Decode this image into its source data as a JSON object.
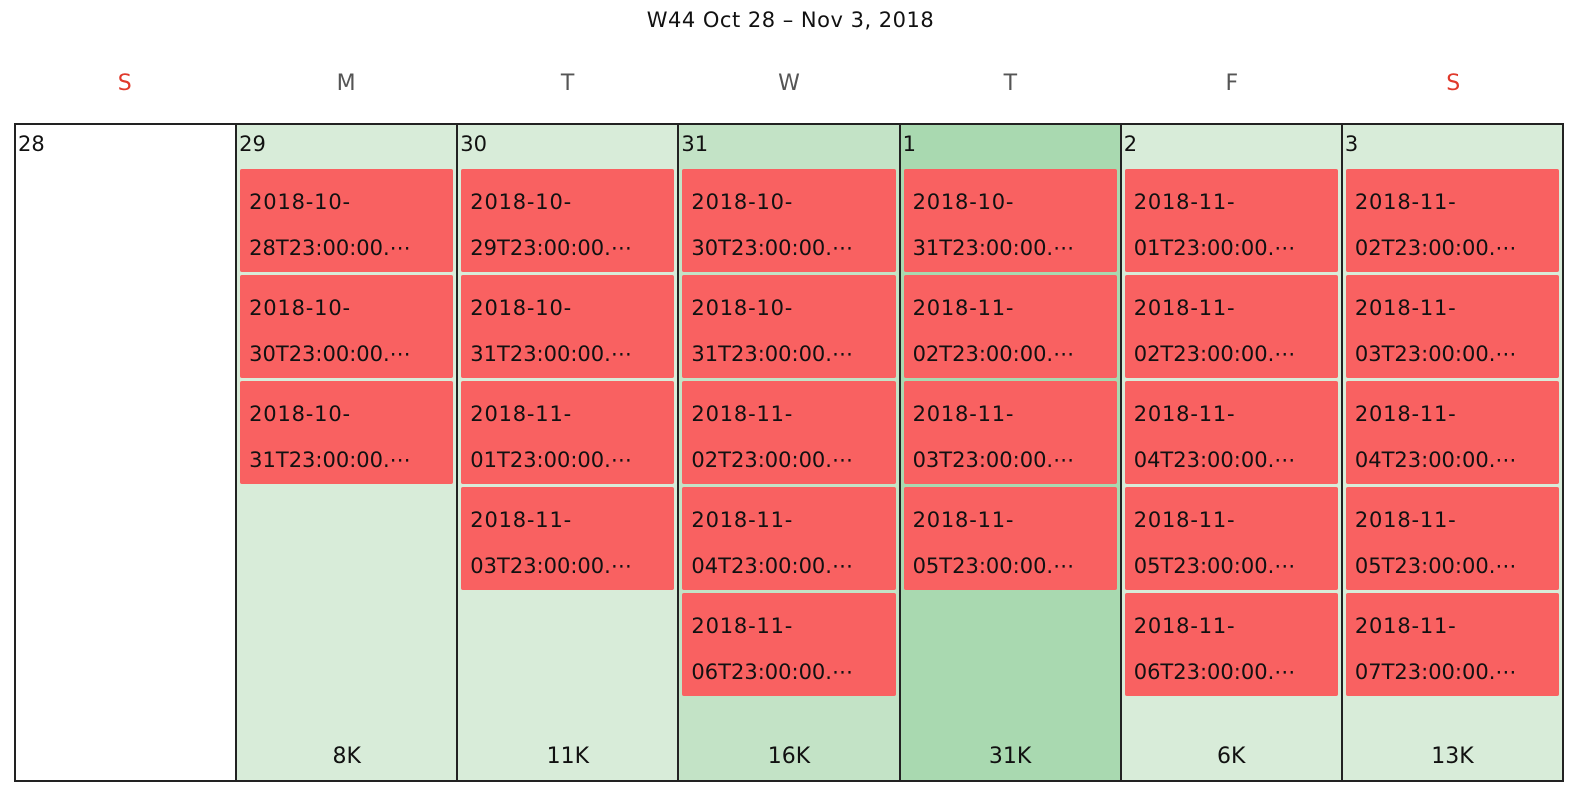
{
  "header": {
    "title": "W44 Oct 28 – Nov 3, 2018"
  },
  "colors": {
    "weekend_label": "#e0392b",
    "event": "#f96161",
    "heat_low": "#d8ecd9",
    "heat_mid": "#c3e3c6",
    "heat_high": "#a9d9b0",
    "empty": "#ffffff"
  },
  "weekdays": [
    {
      "label": "S",
      "weekend": true
    },
    {
      "label": "M",
      "weekend": false
    },
    {
      "label": "T",
      "weekend": false
    },
    {
      "label": "W",
      "weekend": false
    },
    {
      "label": "T",
      "weekend": false
    },
    {
      "label": "F",
      "weekend": false
    },
    {
      "label": "S",
      "weekend": true
    }
  ],
  "days": [
    {
      "number": "28",
      "count": "",
      "events": []
    },
    {
      "number": "29",
      "count": "8K",
      "events": [
        {
          "line1": "2018-10-",
          "line2": "28T23:00:00.⋯"
        },
        {
          "line1": "2018-10-",
          "line2": "30T23:00:00.⋯"
        },
        {
          "line1": "2018-10-",
          "line2": "31T23:00:00.⋯"
        }
      ]
    },
    {
      "number": "30",
      "count": "11K",
      "events": [
        {
          "line1": "2018-10-",
          "line2": "29T23:00:00.⋯"
        },
        {
          "line1": "2018-10-",
          "line2": "31T23:00:00.⋯"
        },
        {
          "line1": "2018-11-",
          "line2": "01T23:00:00.⋯"
        },
        {
          "line1": "2018-11-",
          "line2": "03T23:00:00.⋯"
        }
      ]
    },
    {
      "number": "31",
      "count": "16K",
      "events": [
        {
          "line1": "2018-10-",
          "line2": "30T23:00:00.⋯"
        },
        {
          "line1": "2018-10-",
          "line2": "31T23:00:00.⋯"
        },
        {
          "line1": "2018-11-",
          "line2": "02T23:00:00.⋯"
        },
        {
          "line1": "2018-11-",
          "line2": "04T23:00:00.⋯"
        },
        {
          "line1": "2018-11-",
          "line2": "06T23:00:00.⋯"
        }
      ]
    },
    {
      "number": "1",
      "count": "31K",
      "events": [
        {
          "line1": "2018-10-",
          "line2": "31T23:00:00.⋯"
        },
        {
          "line1": "2018-11-",
          "line2": "02T23:00:00.⋯"
        },
        {
          "line1": "2018-11-",
          "line2": "03T23:00:00.⋯"
        },
        {
          "line1": "2018-11-",
          "line2": "05T23:00:00.⋯"
        }
      ]
    },
    {
      "number": "2",
      "count": "6K",
      "events": [
        {
          "line1": "2018-11-",
          "line2": "01T23:00:00.⋯"
        },
        {
          "line1": "2018-11-",
          "line2": "02T23:00:00.⋯"
        },
        {
          "line1": "2018-11-",
          "line2": "04T23:00:00.⋯"
        },
        {
          "line1": "2018-11-",
          "line2": "05T23:00:00.⋯"
        },
        {
          "line1": "2018-11-",
          "line2": "06T23:00:00.⋯"
        }
      ]
    },
    {
      "number": "3",
      "count": "13K",
      "events": [
        {
          "line1": "2018-11-",
          "line2": "02T23:00:00.⋯"
        },
        {
          "line1": "2018-11-",
          "line2": "03T23:00:00.⋯"
        },
        {
          "line1": "2018-11-",
          "line2": "04T23:00:00.⋯"
        },
        {
          "line1": "2018-11-",
          "line2": "05T23:00:00.⋯"
        },
        {
          "line1": "2018-11-",
          "line2": "07T23:00:00.⋯"
        }
      ]
    }
  ]
}
